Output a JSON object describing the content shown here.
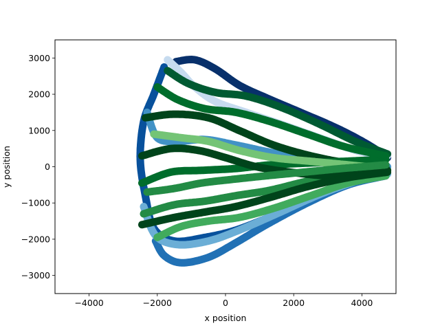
{
  "chart_data": {
    "type": "scatter",
    "title": "",
    "xlabel": "x position",
    "ylabel": "y position",
    "xlim": [
      -5000,
      5000
    ],
    "ylim": [
      -3500,
      3500
    ],
    "xticks": [
      -4000,
      -2000,
      0,
      2000,
      4000
    ],
    "yticks": [
      -3000,
      -2000,
      -1000,
      0,
      1000,
      2000,
      3000
    ],
    "xtick_labels": [
      "−4000",
      "−2000",
      "0",
      "2000",
      "4000"
    ],
    "ytick_labels": [
      "−3000",
      "−2000",
      "−1000",
      "0",
      "1000",
      "2000",
      "3000"
    ],
    "grid": false,
    "legend": "none",
    "series": [
      {
        "colormap": "Blues",
        "color": "#08306b",
        "points": [
          [
            -1450,
            2900
          ],
          [
            -900,
            2950
          ],
          [
            -300,
            2700
          ],
          [
            400,
            2250
          ],
          [
            1200,
            1900
          ],
          [
            2200,
            1500
          ],
          [
            3300,
            1050
          ],
          [
            4200,
            600
          ],
          [
            4750,
            250
          ]
        ]
      },
      {
        "colormap": "Blues",
        "color": "#08519c",
        "points": [
          [
            -1800,
            2750
          ],
          [
            -2100,
            2000
          ],
          [
            -2400,
            1250
          ],
          [
            -2500,
            200
          ],
          [
            -2350,
            -800
          ],
          [
            -2100,
            -1700
          ],
          [
            -1500,
            -2050
          ],
          [
            -600,
            -1950
          ],
          [
            300,
            -1750
          ],
          [
            1400,
            -1350
          ],
          [
            2700,
            -850
          ],
          [
            3800,
            -400
          ],
          [
            4700,
            -150
          ]
        ]
      },
      {
        "colormap": "Blues",
        "color": "#2171b5",
        "points": [
          [
            -2050,
            -2050
          ],
          [
            -1800,
            -2450
          ],
          [
            -1300,
            -2650
          ],
          [
            -500,
            -2500
          ],
          [
            300,
            -2100
          ],
          [
            1200,
            -1600
          ],
          [
            2400,
            -1000
          ],
          [
            3600,
            -500
          ],
          [
            4700,
            -250
          ]
        ]
      },
      {
        "colormap": "Blues",
        "color": "#4292c6",
        "points": [
          [
            -2300,
            1500
          ],
          [
            -2000,
            800
          ],
          [
            -1400,
            700
          ],
          [
            -600,
            750
          ],
          [
            300,
            600
          ],
          [
            1300,
            400
          ],
          [
            2500,
            200
          ],
          [
            3700,
            50
          ],
          [
            4750,
            0
          ]
        ]
      },
      {
        "colormap": "Blues",
        "color": "#6baed6",
        "points": [
          [
            -2400,
            -1100
          ],
          [
            -2050,
            -1900
          ],
          [
            -1400,
            -2150
          ],
          [
            -500,
            -2050
          ],
          [
            400,
            -1750
          ],
          [
            1500,
            -1300
          ],
          [
            2800,
            -750
          ],
          [
            4000,
            -350
          ],
          [
            4750,
            -200
          ]
        ]
      },
      {
        "colormap": "Blues",
        "color": "#c6dbef",
        "points": [
          [
            -1700,
            2950
          ],
          [
            -1300,
            2600
          ],
          [
            -900,
            2200
          ],
          [
            -300,
            1800
          ],
          [
            600,
            1500
          ],
          [
            1700,
            1150
          ],
          [
            2900,
            750
          ],
          [
            4000,
            400
          ],
          [
            4750,
            300
          ]
        ]
      },
      {
        "colormap": "Greens",
        "color": "#00441b",
        "points": [
          [
            -2350,
            1350
          ],
          [
            -1500,
            1450
          ],
          [
            -500,
            1350
          ],
          [
            400,
            1000
          ],
          [
            1400,
            600
          ],
          [
            2500,
            300
          ],
          [
            3600,
            100
          ],
          [
            4700,
            0
          ]
        ]
      },
      {
        "colormap": "Greens",
        "color": "#006d2c",
        "points": [
          [
            -2450,
            -450
          ],
          [
            -1600,
            -150
          ],
          [
            -700,
            -100
          ],
          [
            300,
            -50
          ],
          [
            1300,
            50
          ],
          [
            2400,
            100
          ],
          [
            3500,
            150
          ],
          [
            4700,
            200
          ]
        ]
      },
      {
        "colormap": "Greens",
        "color": "#238b45",
        "points": [
          [
            -2400,
            -1300
          ],
          [
            -1500,
            -1050
          ],
          [
            -600,
            -950
          ],
          [
            300,
            -800
          ],
          [
            1300,
            -650
          ],
          [
            2400,
            -400
          ],
          [
            3600,
            -200
          ],
          [
            4750,
            -100
          ]
        ]
      },
      {
        "colormap": "Greens",
        "color": "#005a32",
        "points": [
          [
            -1700,
            2650
          ],
          [
            -1100,
            2300
          ],
          [
            -300,
            2050
          ],
          [
            600,
            1950
          ],
          [
            1600,
            1650
          ],
          [
            2700,
            1200
          ],
          [
            3800,
            700
          ],
          [
            4750,
            350
          ]
        ]
      },
      {
        "colormap": "Greens",
        "color": "#41ab5d",
        "points": [
          [
            -2000,
            -1950
          ],
          [
            -1300,
            -1650
          ],
          [
            -500,
            -1500
          ],
          [
            400,
            -1400
          ],
          [
            1400,
            -1150
          ],
          [
            2500,
            -800
          ],
          [
            3600,
            -450
          ],
          [
            4700,
            -250
          ]
        ]
      },
      {
        "colormap": "Greens",
        "color": "#74c476",
        "points": [
          [
            -2100,
            900
          ],
          [
            -1300,
            800
          ],
          [
            -500,
            700
          ],
          [
            400,
            450
          ],
          [
            1400,
            250
          ],
          [
            2500,
            150
          ],
          [
            3600,
            50
          ],
          [
            4700,
            -50
          ]
        ]
      },
      {
        "colormap": "Greens",
        "color": "#00441b",
        "points": [
          [
            -2450,
            300
          ],
          [
            -1600,
            500
          ],
          [
            -800,
            450
          ],
          [
            0,
            250
          ],
          [
            900,
            0
          ],
          [
            1900,
            -150
          ],
          [
            3000,
            -250
          ],
          [
            4100,
            -200
          ],
          [
            4750,
            -100
          ]
        ]
      },
      {
        "colormap": "Greens",
        "color": "#006d2c",
        "points": [
          [
            -2000,
            2200
          ],
          [
            -1400,
            1850
          ],
          [
            -600,
            1600
          ],
          [
            300,
            1500
          ],
          [
            1300,
            1250
          ],
          [
            2400,
            900
          ],
          [
            3500,
            550
          ],
          [
            4700,
            300
          ]
        ]
      },
      {
        "colormap": "Greens",
        "color": "#238b45",
        "points": [
          [
            -2300,
            -700
          ],
          [
            -1500,
            -600
          ],
          [
            -700,
            -450
          ],
          [
            200,
            -350
          ],
          [
            1200,
            -250
          ],
          [
            2300,
            -150
          ],
          [
            3400,
            -50
          ],
          [
            4700,
            50
          ]
        ]
      },
      {
        "colormap": "Greens",
        "color": "#00441b",
        "points": [
          [
            -2450,
            -1600
          ],
          [
            -1500,
            -1400
          ],
          [
            -600,
            -1250
          ],
          [
            300,
            -1100
          ],
          [
            1300,
            -850
          ],
          [
            2400,
            -550
          ],
          [
            3600,
            -300
          ],
          [
            4750,
            -150
          ]
        ]
      }
    ]
  }
}
